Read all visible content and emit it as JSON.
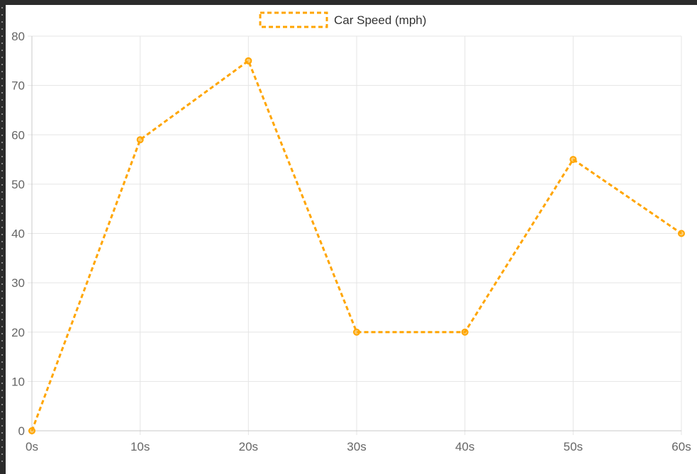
{
  "colors": {
    "series": "#ffa500",
    "grid": "#e5e5e5",
    "axis": "#c8c8c8",
    "tick_text": "#666666",
    "frame": "#2b2b2b"
  },
  "chart_data": {
    "type": "line",
    "title": "",
    "xlabel": "",
    "ylabel": "",
    "x": [
      "0s",
      "10s",
      "20s",
      "30s",
      "40s",
      "50s",
      "60s"
    ],
    "series": [
      {
        "name": "Car Speed (mph)",
        "values": [
          0,
          59,
          75,
          20,
          20,
          55,
          40
        ],
        "line_style": "dashed",
        "color": "#ffa500"
      }
    ],
    "yticks": [
      "0",
      "10",
      "20",
      "30",
      "40",
      "50",
      "60",
      "70",
      "80"
    ],
    "ylim": [
      0,
      80
    ],
    "grid": true,
    "legend": "top-center"
  }
}
